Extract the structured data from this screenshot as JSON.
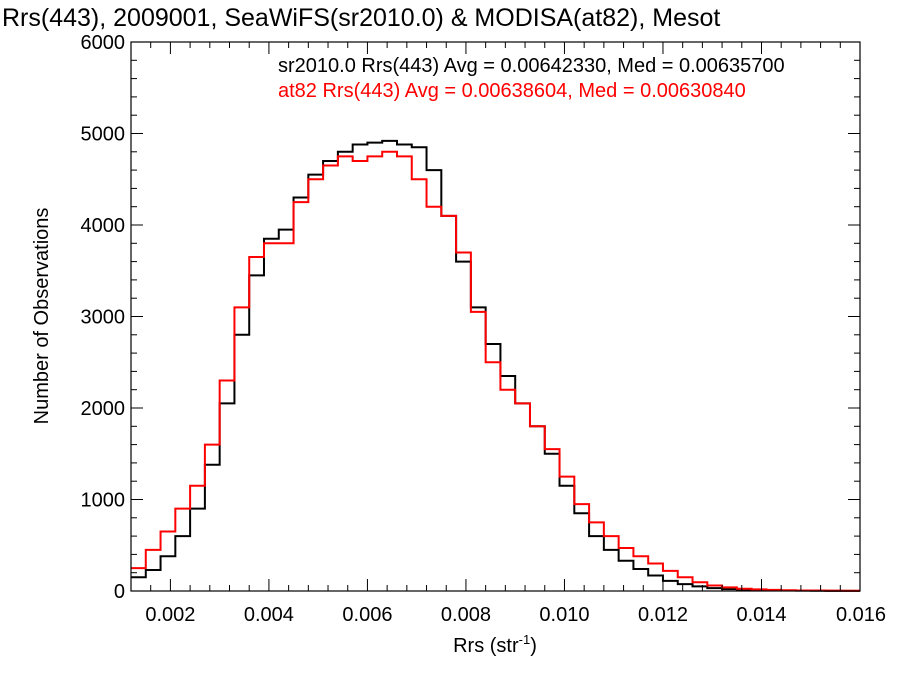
{
  "chart_data": {
    "type": "line",
    "title": "Rrs(443), 2009001, SeaWiFS(sr2010.0) & MODISA(at82), Mesot",
    "xlabel": "Rrs (str",
    "xlabel_sup": "-1",
    "xlabel_end": ")",
    "ylabel": "Number of Observations",
    "xlim": [
      0.0012,
      0.016
    ],
    "ylim": [
      0,
      6000
    ],
    "xticks": [
      "0.002",
      "0.004",
      "0.006",
      "0.008",
      "0.010",
      "0.012",
      "0.014",
      "0.016"
    ],
    "yticks": [
      "0",
      "1000",
      "2000",
      "3000",
      "4000",
      "5000",
      "6000"
    ],
    "grid": false,
    "legend_position": "top-right",
    "annotations": [
      {
        "text": "sr2010.0 Rrs(443) Avg = 0.00642330, Med = 0.00635700",
        "color": "#000000"
      },
      {
        "text": "at82 Rrs(443) Avg = 0.00638604, Med = 0.00630840",
        "color": "#ff0000"
      }
    ],
    "series": [
      {
        "color": "#000000",
        "x": [
          0.0012,
          0.0015,
          0.0018,
          0.0021,
          0.0024,
          0.0027,
          0.003,
          0.0033,
          0.0036,
          0.0039,
          0.0042,
          0.0045,
          0.0048,
          0.0051,
          0.0054,
          0.0057,
          0.006,
          0.0063,
          0.0066,
          0.0069,
          0.0072,
          0.0075,
          0.0078,
          0.0081,
          0.0084,
          0.0087,
          0.009,
          0.0093,
          0.0096,
          0.0099,
          0.0102,
          0.0105,
          0.0108,
          0.0111,
          0.0114,
          0.0117,
          0.012,
          0.0123,
          0.0126,
          0.0129,
          0.0132,
          0.0135,
          0.0138,
          0.0141,
          0.0144,
          0.0147,
          0.015,
          0.0153,
          0.0156,
          0.016
        ],
        "values": [
          150,
          230,
          380,
          600,
          900,
          1380,
          2050,
          2800,
          3450,
          3850,
          3950,
          4300,
          4550,
          4700,
          4800,
          4880,
          4900,
          4920,
          4880,
          4850,
          4600,
          4100,
          3600,
          3100,
          2700,
          2350,
          2050,
          1800,
          1500,
          1150,
          850,
          600,
          450,
          330,
          240,
          170,
          110,
          75,
          50,
          32,
          20,
          14,
          10,
          7,
          5,
          4,
          3,
          2,
          2,
          2
        ]
      },
      {
        "color": "#ff0000",
        "x": [
          0.0012,
          0.0015,
          0.0018,
          0.0021,
          0.0024,
          0.0027,
          0.003,
          0.0033,
          0.0036,
          0.0039,
          0.0042,
          0.0045,
          0.0048,
          0.0051,
          0.0054,
          0.0057,
          0.006,
          0.0063,
          0.0066,
          0.0069,
          0.0072,
          0.0075,
          0.0078,
          0.0081,
          0.0084,
          0.0087,
          0.009,
          0.0093,
          0.0096,
          0.0099,
          0.0102,
          0.0105,
          0.0108,
          0.0111,
          0.0114,
          0.0117,
          0.012,
          0.0123,
          0.0126,
          0.0129,
          0.0132,
          0.0135,
          0.0138,
          0.0141,
          0.0144,
          0.0147,
          0.015,
          0.0153,
          0.0156,
          0.016
        ],
        "values": [
          250,
          450,
          650,
          900,
          1150,
          1600,
          2300,
          3100,
          3650,
          3800,
          3800,
          4250,
          4500,
          4650,
          4750,
          4700,
          4750,
          4800,
          4750,
          4500,
          4200,
          4100,
          3700,
          3050,
          2500,
          2200,
          2050,
          1800,
          1550,
          1250,
          950,
          750,
          600,
          470,
          380,
          300,
          220,
          150,
          95,
          60,
          40,
          25,
          18,
          12,
          8,
          6,
          5,
          4,
          3,
          3
        ]
      }
    ]
  }
}
